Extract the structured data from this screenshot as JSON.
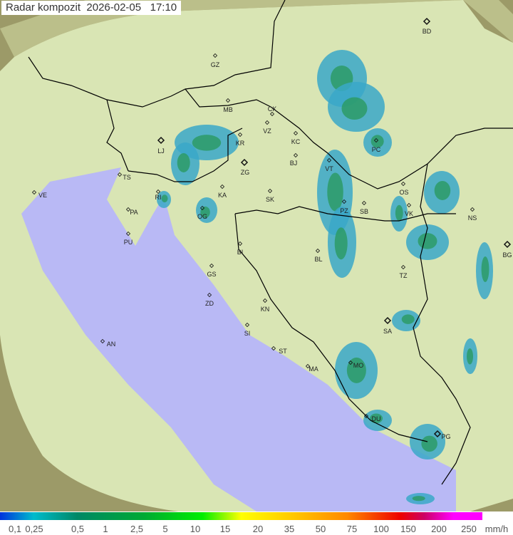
{
  "title": "Radar kompozit  2026-02-05   17:10",
  "legend": {
    "ticks": [
      "0,1",
      "0,25",
      "0,5",
      "1",
      "2,5",
      "5",
      "10",
      "15",
      "20",
      "35",
      "50",
      "75",
      "100",
      "150",
      "200",
      "250"
    ],
    "unit": "mm/h",
    "colors": [
      "#0033dd",
      "#00bbcc",
      "#008866",
      "#00aa33",
      "#00ee00",
      "#ffff00",
      "#ffcc00",
      "#ff8800",
      "#ee0000",
      "#cc0066",
      "#ff00ff"
    ]
  },
  "map": {
    "land_color": "#d8e6b0",
    "sea_color": "#b8b8f4",
    "outside_color": "#8a8a5a",
    "cities": [
      "BD",
      "GZ",
      "MB",
      "CK",
      "VZ",
      "KC",
      "KR",
      "LJ",
      "ZG",
      "TS",
      "VT",
      "PC",
      "BJ",
      "VE",
      "RI",
      "KA",
      "SK",
      "OS",
      "PA",
      "OG",
      "PZ",
      "SB",
      "VK",
      "NS",
      "PU",
      "BI",
      "BL",
      "BG",
      "GS",
      "TZ",
      "ZD",
      "KN",
      "SA",
      "SI",
      "AN",
      "ST",
      "MA",
      "MO",
      "DU",
      "PG"
    ]
  }
}
